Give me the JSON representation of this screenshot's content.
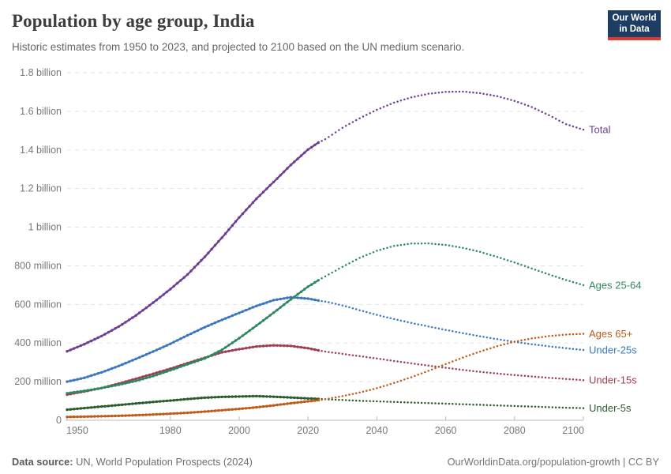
{
  "header": {
    "title": "Population by age group, India",
    "subtitle": "Historic estimates from 1950 to 2023, and projected to 2100 based on the UN medium scenario.",
    "logo": {
      "line1": "Our World",
      "line2": "in Data",
      "bg_color": "#1d3d63",
      "bar_color": "#dc3a2f"
    }
  },
  "footer": {
    "source_label": "Data source:",
    "source_text": " UN, World Population Prospects (2024)",
    "right_text": "OurWorldinData.org/population-growth | CC BY"
  },
  "chart_data": {
    "type": "line",
    "title": "Population by age group, India",
    "unit": "people (millions)",
    "x_range": [
      1950,
      2100
    ],
    "y_range": [
      0,
      1800
    ],
    "grid": true,
    "legend_position": "right-of-line-ends",
    "projection_from": 2023,
    "x_ticks": [
      1950,
      1980,
      2000,
      2020,
      2040,
      2060,
      2080,
      2100
    ],
    "y_ticks": [
      {
        "value": 1800,
        "label": "1.8 billion"
      },
      {
        "value": 1600,
        "label": "1.6 billion"
      },
      {
        "value": 1400,
        "label": "1.4 billion"
      },
      {
        "value": 1200,
        "label": "1.2 billion"
      },
      {
        "value": 1000,
        "label": "1 billion"
      },
      {
        "value": 800,
        "label": "800 million"
      },
      {
        "value": 600,
        "label": "600 million"
      },
      {
        "value": 400,
        "label": "400 million"
      },
      {
        "value": 200,
        "label": "200 million"
      },
      {
        "value": 0,
        "label": "0"
      }
    ],
    "series": [
      {
        "name": "Total",
        "color": "#6d3e91",
        "points": [
          [
            1950,
            357
          ],
          [
            1955,
            394
          ],
          [
            1960,
            436
          ],
          [
            1965,
            485
          ],
          [
            1970,
            543
          ],
          [
            1975,
            609
          ],
          [
            1980,
            679
          ],
          [
            1985,
            755
          ],
          [
            1990,
            846
          ],
          [
            1995,
            946
          ],
          [
            2000,
            1050
          ],
          [
            2005,
            1147
          ],
          [
            2010,
            1234
          ],
          [
            2015,
            1322
          ],
          [
            2020,
            1402
          ],
          [
            2023,
            1438
          ],
          [
            2025,
            1455
          ],
          [
            2030,
            1515
          ],
          [
            2035,
            1564
          ],
          [
            2040,
            1608
          ],
          [
            2045,
            1645
          ],
          [
            2050,
            1672
          ],
          [
            2055,
            1691
          ],
          [
            2060,
            1701
          ],
          [
            2065,
            1702
          ],
          [
            2070,
            1694
          ],
          [
            2075,
            1678
          ],
          [
            2080,
            1654
          ],
          [
            2085,
            1622
          ],
          [
            2090,
            1580
          ],
          [
            2095,
            1533
          ],
          [
            2100,
            1505
          ]
        ]
      },
      {
        "name": "Ages 25-64",
        "color": "#2e8760",
        "points": [
          [
            1950,
            140
          ],
          [
            1955,
            152
          ],
          [
            1960,
            167
          ],
          [
            1965,
            184
          ],
          [
            1970,
            204
          ],
          [
            1975,
            229
          ],
          [
            1980,
            259
          ],
          [
            1985,
            290
          ],
          [
            1990,
            320
          ],
          [
            1995,
            365
          ],
          [
            2000,
            425
          ],
          [
            2005,
            490
          ],
          [
            2010,
            557
          ],
          [
            2015,
            626
          ],
          [
            2020,
            692
          ],
          [
            2023,
            725
          ],
          [
            2025,
            745
          ],
          [
            2030,
            795
          ],
          [
            2035,
            841
          ],
          [
            2040,
            878
          ],
          [
            2045,
            903
          ],
          [
            2050,
            915
          ],
          [
            2055,
            916
          ],
          [
            2060,
            908
          ],
          [
            2065,
            893
          ],
          [
            2070,
            872
          ],
          [
            2075,
            846
          ],
          [
            2080,
            817
          ],
          [
            2085,
            786
          ],
          [
            2090,
            755
          ],
          [
            2095,
            726
          ],
          [
            2100,
            700
          ]
        ]
      },
      {
        "name": "Ages 65+",
        "color": "#c05a18",
        "points": [
          [
            1950,
            17
          ],
          [
            1955,
            19
          ],
          [
            1960,
            21
          ],
          [
            1965,
            23
          ],
          [
            1970,
            26
          ],
          [
            1975,
            30
          ],
          [
            1980,
            34
          ],
          [
            1985,
            39
          ],
          [
            1990,
            45
          ],
          [
            1995,
            52
          ],
          [
            2000,
            59
          ],
          [
            2005,
            67
          ],
          [
            2010,
            77
          ],
          [
            2015,
            88
          ],
          [
            2020,
            98
          ],
          [
            2023,
            104
          ],
          [
            2025,
            109
          ],
          [
            2030,
            125
          ],
          [
            2035,
            144
          ],
          [
            2040,
            166
          ],
          [
            2045,
            193
          ],
          [
            2050,
            223
          ],
          [
            2055,
            256
          ],
          [
            2060,
            291
          ],
          [
            2065,
            325
          ],
          [
            2070,
            356
          ],
          [
            2075,
            384
          ],
          [
            2080,
            407
          ],
          [
            2085,
            424
          ],
          [
            2090,
            436
          ],
          [
            2095,
            444
          ],
          [
            2100,
            448
          ]
        ]
      },
      {
        "name": "Under-25s",
        "color": "#3a77bf",
        "points": [
          [
            1950,
            200
          ],
          [
            1955,
            220
          ],
          [
            1960,
            248
          ],
          [
            1965,
            281
          ],
          [
            1970,
            318
          ],
          [
            1975,
            356
          ],
          [
            1980,
            396
          ],
          [
            1985,
            440
          ],
          [
            1990,
            482
          ],
          [
            1995,
            520
          ],
          [
            2000,
            556
          ],
          [
            2005,
            592
          ],
          [
            2010,
            622
          ],
          [
            2015,
            637
          ],
          [
            2020,
            630
          ],
          [
            2023,
            620
          ],
          [
            2025,
            615
          ],
          [
            2030,
            595
          ],
          [
            2035,
            570
          ],
          [
            2040,
            546
          ],
          [
            2045,
            524
          ],
          [
            2050,
            504
          ],
          [
            2055,
            486
          ],
          [
            2060,
            468
          ],
          [
            2065,
            451
          ],
          [
            2070,
            435
          ],
          [
            2075,
            420
          ],
          [
            2080,
            406
          ],
          [
            2085,
            394
          ],
          [
            2090,
            383
          ],
          [
            2095,
            373
          ],
          [
            2100,
            364
          ]
        ]
      },
      {
        "name": "Under-15s",
        "color": "#9c3f50",
        "points": [
          [
            1950,
            133
          ],
          [
            1955,
            149
          ],
          [
            1960,
            167
          ],
          [
            1965,
            190
          ],
          [
            1970,
            215
          ],
          [
            1975,
            241
          ],
          [
            1980,
            267
          ],
          [
            1985,
            296
          ],
          [
            1990,
            324
          ],
          [
            1995,
            352
          ],
          [
            2000,
            368
          ],
          [
            2005,
            382
          ],
          [
            2010,
            388
          ],
          [
            2015,
            385
          ],
          [
            2020,
            373
          ],
          [
            2023,
            362
          ],
          [
            2025,
            356
          ],
          [
            2030,
            344
          ],
          [
            2035,
            332
          ],
          [
            2040,
            320
          ],
          [
            2045,
            307
          ],
          [
            2050,
            295
          ],
          [
            2055,
            283
          ],
          [
            2060,
            272
          ],
          [
            2065,
            261
          ],
          [
            2070,
            251
          ],
          [
            2075,
            242
          ],
          [
            2080,
            234
          ],
          [
            2085,
            227
          ],
          [
            2090,
            220
          ],
          [
            2095,
            214
          ],
          [
            2100,
            208
          ]
        ]
      },
      {
        "name": "Under-5s",
        "color": "#2b5b2e",
        "points": [
          [
            1950,
            55
          ],
          [
            1955,
            63
          ],
          [
            1960,
            71
          ],
          [
            1965,
            79
          ],
          [
            1970,
            87
          ],
          [
            1975,
            95
          ],
          [
            1980,
            102
          ],
          [
            1985,
            110
          ],
          [
            1990,
            117
          ],
          [
            1995,
            121
          ],
          [
            2000,
            123
          ],
          [
            2005,
            125
          ],
          [
            2010,
            122
          ],
          [
            2015,
            118
          ],
          [
            2020,
            113
          ],
          [
            2023,
            111
          ],
          [
            2025,
            109
          ],
          [
            2030,
            105
          ],
          [
            2035,
            101
          ],
          [
            2040,
            98
          ],
          [
            2045,
            95
          ],
          [
            2050,
            92
          ],
          [
            2055,
            89
          ],
          [
            2060,
            86
          ],
          [
            2065,
            83
          ],
          [
            2070,
            80
          ],
          [
            2075,
            77
          ],
          [
            2080,
            74
          ],
          [
            2085,
            71
          ],
          [
            2090,
            68
          ],
          [
            2095,
            65
          ],
          [
            2100,
            63
          ]
        ]
      }
    ]
  }
}
